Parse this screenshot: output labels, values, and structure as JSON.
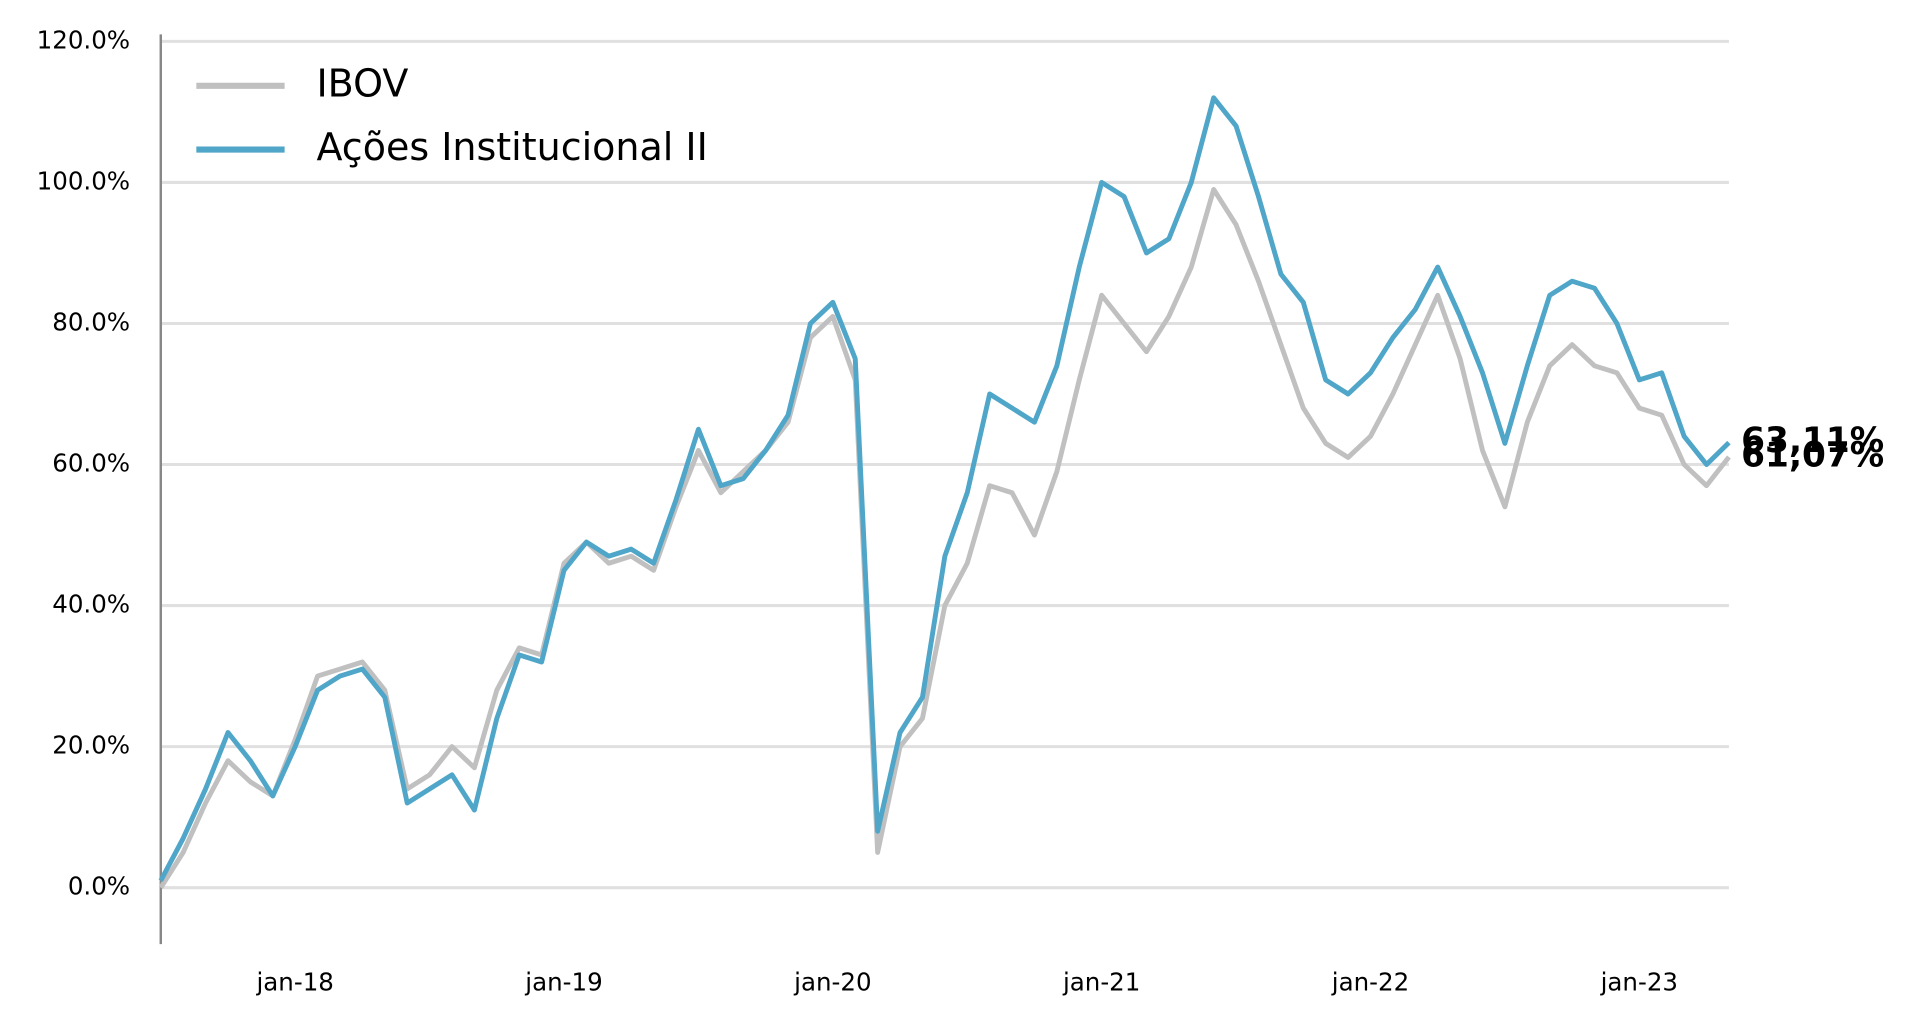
{
  "chart_data": {
    "type": "line",
    "x": [
      "jul-17",
      "aug-17",
      "sep-17",
      "oct-17",
      "nov-17",
      "dec-17",
      "jan-18",
      "feb-18",
      "mar-18",
      "apr-18",
      "may-18",
      "jun-18",
      "jul-18",
      "aug-18",
      "sep-18",
      "oct-18",
      "nov-18",
      "dec-18",
      "jan-19",
      "feb-19",
      "mar-19",
      "apr-19",
      "may-19",
      "jun-19",
      "jul-19",
      "aug-19",
      "sep-19",
      "oct-19",
      "nov-19",
      "dec-19",
      "jan-20",
      "feb-20",
      "mar-20",
      "apr-20",
      "may-20",
      "jun-20",
      "jul-20",
      "aug-20",
      "sep-20",
      "oct-20",
      "nov-20",
      "dec-20",
      "jan-21",
      "feb-21",
      "mar-21",
      "apr-21",
      "may-21",
      "jun-21",
      "jul-21",
      "aug-21",
      "sep-21",
      "oct-21",
      "nov-21",
      "dec-21",
      "jan-22",
      "feb-22",
      "mar-22",
      "apr-22",
      "may-22",
      "jun-22",
      "jul-22",
      "aug-22",
      "sep-22",
      "oct-22",
      "nov-22",
      "dec-22",
      "jan-23",
      "feb-23",
      "mar-23",
      "apr-23",
      "may-23"
    ],
    "series": [
      {
        "name": "IBOV",
        "color": "#c0c0c0",
        "values": [
          0,
          5,
          12,
          18,
          15,
          13,
          21,
          30,
          31,
          32,
          28,
          14,
          16,
          20,
          17,
          28,
          34,
          33,
          46,
          49,
          46,
          47,
          45,
          54,
          62,
          56,
          59,
          62,
          66,
          78,
          81,
          72,
          5,
          20,
          24,
          40,
          46,
          57,
          56,
          50,
          59,
          72,
          84,
          80,
          76,
          81,
          88,
          99,
          94,
          86,
          77,
          68,
          63,
          61,
          64,
          70,
          77,
          84,
          75,
          62,
          54,
          66,
          74,
          77,
          74,
          73,
          68,
          67,
          60,
          57,
          61.07
        ],
        "value_labels": [
          null,
          null,
          null,
          null,
          null,
          null,
          null,
          null,
          null,
          null,
          null,
          null,
          null,
          null,
          null,
          null,
          null,
          null,
          null,
          null,
          null,
          null,
          null,
          null,
          null,
          null,
          null,
          null,
          null,
          null,
          null,
          null,
          null,
          null,
          null,
          null,
          null,
          null,
          null,
          null,
          null,
          null,
          null,
          null,
          null,
          null,
          null,
          null,
          null,
          null,
          null,
          null,
          null,
          null,
          null,
          null,
          null,
          null,
          null,
          null,
          null,
          null,
          null,
          null,
          null,
          null,
          null,
          null,
          null,
          null,
          "61,07%"
        ]
      },
      {
        "name": "Ações Institucional II",
        "color": "#4fa6c8",
        "values": [
          1,
          7,
          14,
          22,
          18,
          13,
          20,
          28,
          30,
          31,
          27,
          12,
          14,
          16,
          11,
          24,
          33,
          32,
          45,
          49,
          47,
          48,
          46,
          55,
          65,
          57,
          58,
          62,
          67,
          80,
          83,
          75,
          8,
          22,
          27,
          47,
          56,
          70,
          68,
          66,
          74,
          88,
          100,
          98,
          90,
          92,
          100,
          112,
          108,
          98,
          87,
          83,
          72,
          70,
          73,
          78,
          82,
          88,
          81,
          73,
          63,
          74,
          84,
          86,
          85,
          80,
          72,
          73,
          64,
          60,
          63.11
        ],
        "value_labels": [
          null,
          null,
          null,
          null,
          null,
          null,
          null,
          null,
          null,
          null,
          null,
          null,
          null,
          null,
          null,
          null,
          null,
          null,
          null,
          null,
          null,
          null,
          null,
          null,
          null,
          null,
          null,
          null,
          null,
          null,
          null,
          null,
          null,
          null,
          null,
          null,
          null,
          null,
          null,
          null,
          null,
          null,
          null,
          null,
          null,
          null,
          null,
          null,
          null,
          null,
          null,
          null,
          null,
          null,
          null,
          null,
          null,
          null,
          null,
          null,
          null,
          null,
          null,
          null,
          null,
          null,
          null,
          null,
          null,
          null,
          "63,11%"
        ]
      }
    ],
    "ylim": [
      -8,
      121
    ],
    "yticks": [
      {
        "value": 0,
        "label": "0.0%"
      },
      {
        "value": 20,
        "label": "20.0%"
      },
      {
        "value": 40,
        "label": "40.0%"
      },
      {
        "value": 60,
        "label": "60.0%"
      },
      {
        "value": 80,
        "label": "80.0%"
      },
      {
        "value": 100,
        "label": "100.0%"
      },
      {
        "value": 120,
        "label": "120.0%"
      }
    ],
    "grid": true,
    "legend": "upper left"
  }
}
